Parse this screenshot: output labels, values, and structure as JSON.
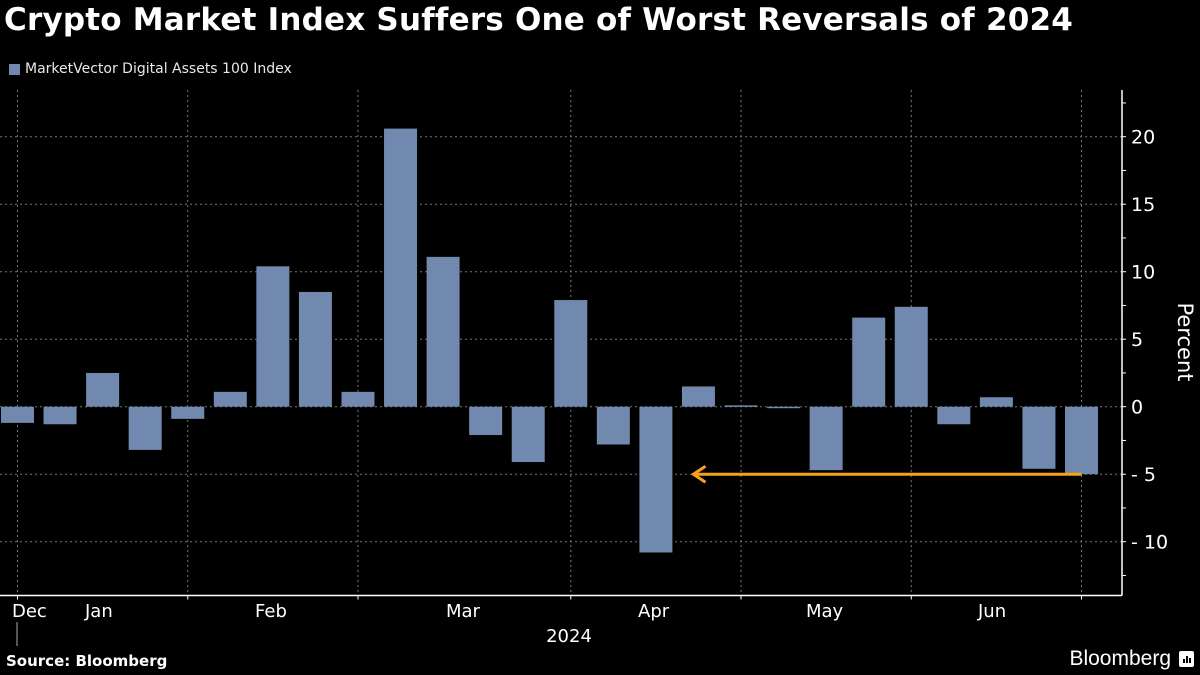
{
  "title": "Crypto Market Index Suffers One of Worst Reversals of 2024",
  "source": "Source: Bloomberg",
  "logo": "Bloomberg",
  "chart_data": {
    "type": "bar",
    "title": "Crypto Market Index Suffers One of Worst Reversals of 2024",
    "ylabel": "Percent",
    "xlabel": "",
    "ylim": [
      -13,
      23
    ],
    "yticks": [
      -10,
      -5,
      0,
      5,
      10,
      15,
      20
    ],
    "grid": true,
    "legend_position": "top-left",
    "x_month_labels": [
      "Dec",
      "Jan",
      "Feb",
      "Mar",
      "Apr",
      "May",
      "Jun"
    ],
    "x_year_label": "2024",
    "series": [
      {
        "name": "MarketVector Digital Assets 100 Index",
        "color": "#7189ae",
        "values": [
          -1.2,
          -1.3,
          2.5,
          -3.2,
          -0.9,
          1.1,
          10.4,
          8.5,
          1.1,
          20.6,
          11.1,
          -2.1,
          -4.1,
          7.9,
          -2.8,
          -10.8,
          1.5,
          0.1,
          -0.1,
          -4.7,
          6.6,
          7.4,
          -1.3,
          0.7,
          -4.6,
          -5.0
        ]
      }
    ],
    "annotation": {
      "type": "arrow",
      "color": "#f7a21b",
      "y": -5.0,
      "from_bar": 26,
      "to_bar": 17
    }
  }
}
